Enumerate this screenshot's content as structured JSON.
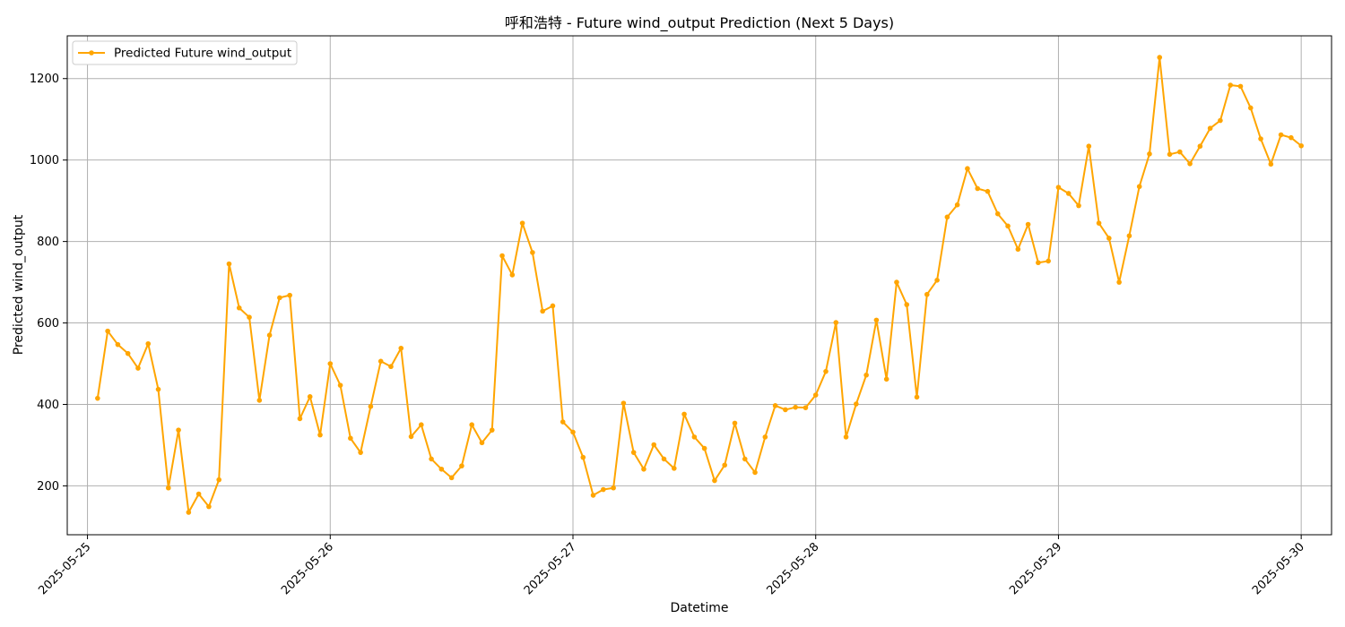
{
  "chart_data": {
    "type": "line",
    "title": "呼和浩特 - Future wind_output Prediction (Next 5 Days)",
    "xlabel": "Datetime",
    "ylabel": "Predicted wind_output",
    "x_ticks": [
      "2025-05-25",
      "2025-05-26",
      "2025-05-27",
      "2025-05-28",
      "2025-05-29",
      "2025-05-30"
    ],
    "y_ticks": [
      200,
      400,
      600,
      800,
      1000,
      1200
    ],
    "xlim": [
      "2025-05-24 22:00",
      "2025-05-30 03:00"
    ],
    "ylim": [
      80,
      1305
    ],
    "grid": true,
    "legend_position": "upper-left",
    "x_start": "2025-05-25 01:00",
    "x_step_hours": 1,
    "series": [
      {
        "name": "Predicted Future wind_output",
        "color": "#FFA500",
        "marker": "circle",
        "values": [
          415,
          580,
          547,
          525,
          489,
          549,
          437,
          195,
          337,
          135,
          180,
          149,
          215,
          745,
          637,
          614,
          410,
          570,
          662,
          668,
          365,
          419,
          325,
          500,
          447,
          317,
          282,
          395,
          506,
          493,
          538,
          321,
          350,
          266,
          241,
          220,
          249,
          350,
          306,
          337,
          765,
          718,
          845,
          773,
          629,
          642,
          357,
          332,
          270,
          177,
          191,
          195,
          403,
          282,
          241,
          301,
          266,
          243,
          376,
          320,
          292,
          213,
          251,
          354,
          266,
          233,
          320,
          397,
          387,
          393,
          392,
          423,
          481,
          601,
          320,
          401,
          472,
          607,
          462,
          700,
          645,
          418,
          670,
          705,
          860,
          890,
          979,
          930,
          923,
          868,
          838,
          781,
          842,
          748,
          752,
          933,
          918,
          888,
          1034,
          845,
          808,
          700,
          814,
          935,
          1015,
          1252,
          1014,
          1020,
          991,
          1034,
          1078,
          1097,
          1184,
          1181,
          1128,
          1052,
          990,
          1062,
          1055,
          1035
        ]
      }
    ]
  }
}
